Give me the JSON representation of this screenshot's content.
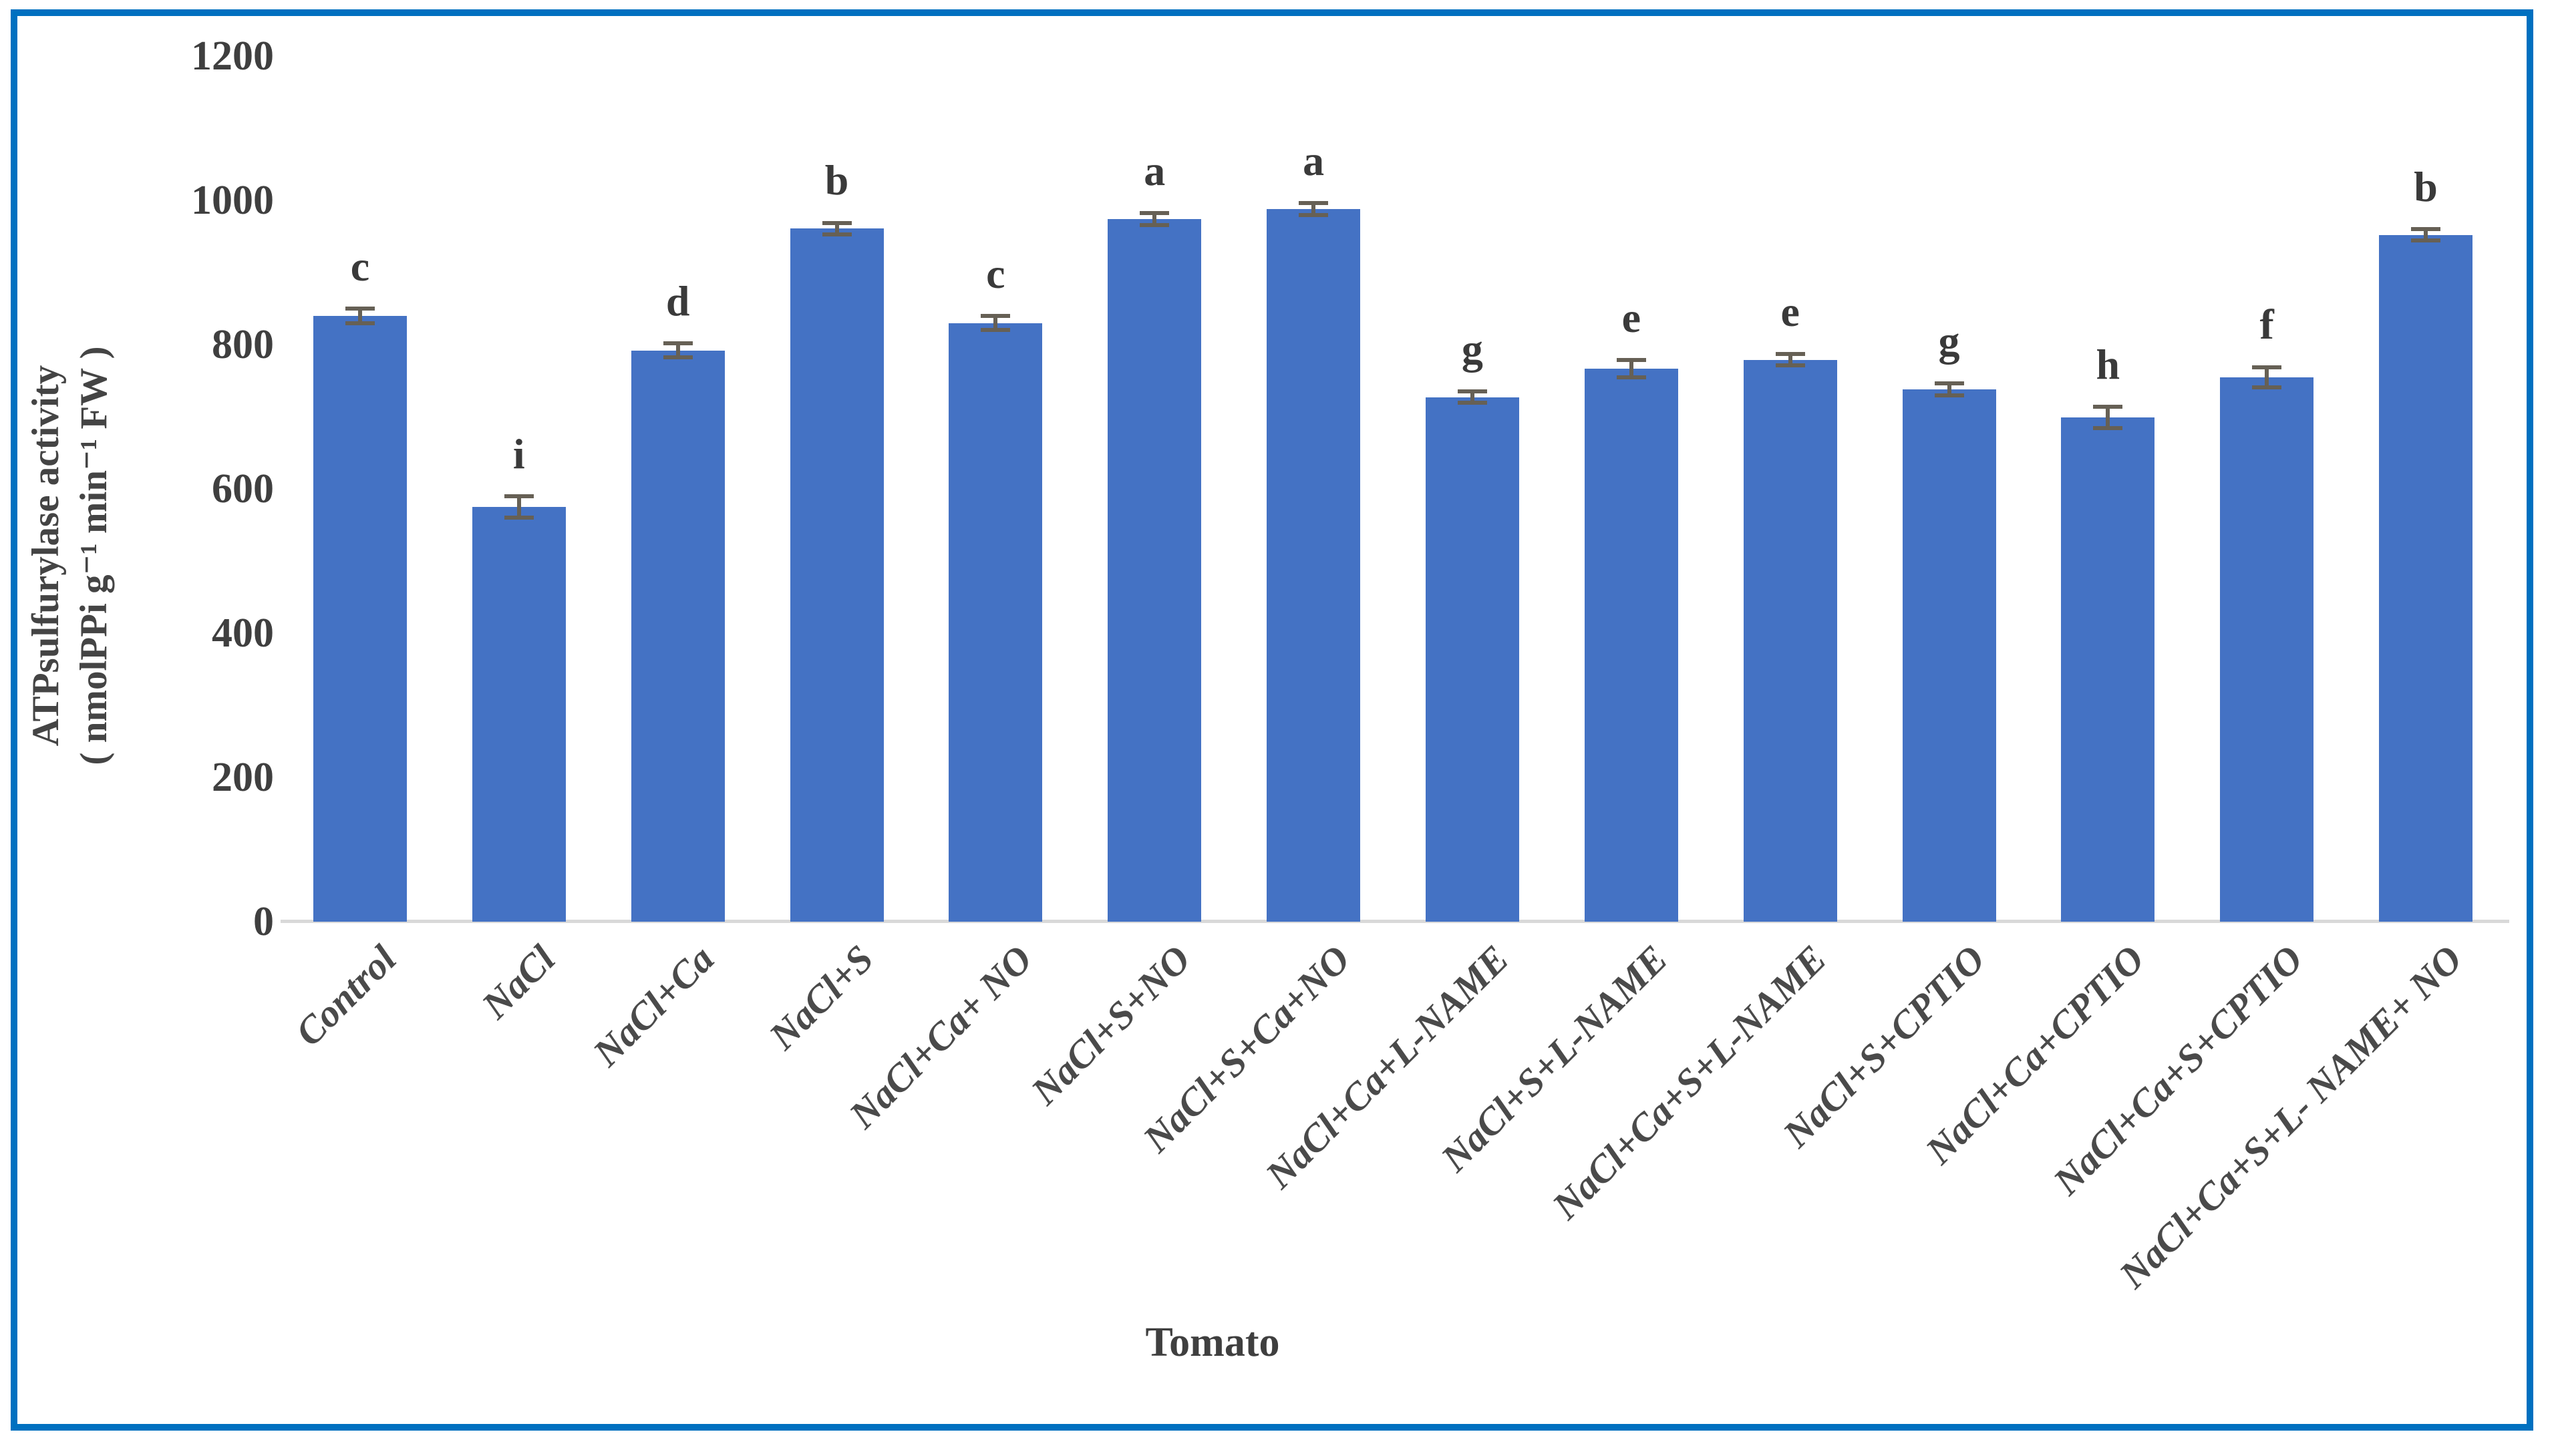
{
  "figure": {
    "border_color": "#0070C0",
    "background": "#ffffff",
    "x_title": "Tomato",
    "y_title_line1": "ATPsulfurylase activity",
    "y_title_line2": "( nmolPPi g⁻¹ min⁻¹ FW )"
  },
  "chart_data": {
    "type": "bar",
    "title": "",
    "xlabel": "Tomato",
    "ylabel": "ATPsulfurylase activity ( nmolPPi g⁻¹ min⁻¹ FW )",
    "ylim": [
      0,
      1200
    ],
    "yticks": [
      0,
      200,
      400,
      600,
      800,
      1000,
      1200
    ],
    "grid": false,
    "legend": false,
    "bar_color": "#4472C4",
    "error_bar_color": "#666055",
    "categories": [
      "Control",
      "NaCl",
      "NaCl+Ca",
      "NaCl+S",
      "NaCl+Ca+ NO",
      "NaCl+S+NO",
      "NaCl+S+Ca+NO",
      "NaCl+Ca+L-NAME",
      "NaCl+S+L-NAME",
      "NaCl+Ca+S+L-NAME",
      "NaCl+S+CPTIO",
      "NaCl+Ca+CPTIO",
      "NaCl+Ca+S+CPTIO",
      "NaCl+Ca+S+L- NAME+ NO"
    ],
    "values": [
      840,
      575,
      792,
      961,
      830,
      974,
      988,
      727,
      767,
      779,
      738,
      699,
      755,
      952
    ],
    "errors": [
      10,
      15,
      10,
      8,
      10,
      8,
      8,
      8,
      12,
      8,
      8,
      15,
      14,
      8
    ],
    "significance_letters": [
      "c",
      "i",
      "d",
      "b",
      "c",
      "a",
      "a",
      "g",
      "e",
      "e",
      "g",
      "h",
      "f",
      "b"
    ]
  }
}
